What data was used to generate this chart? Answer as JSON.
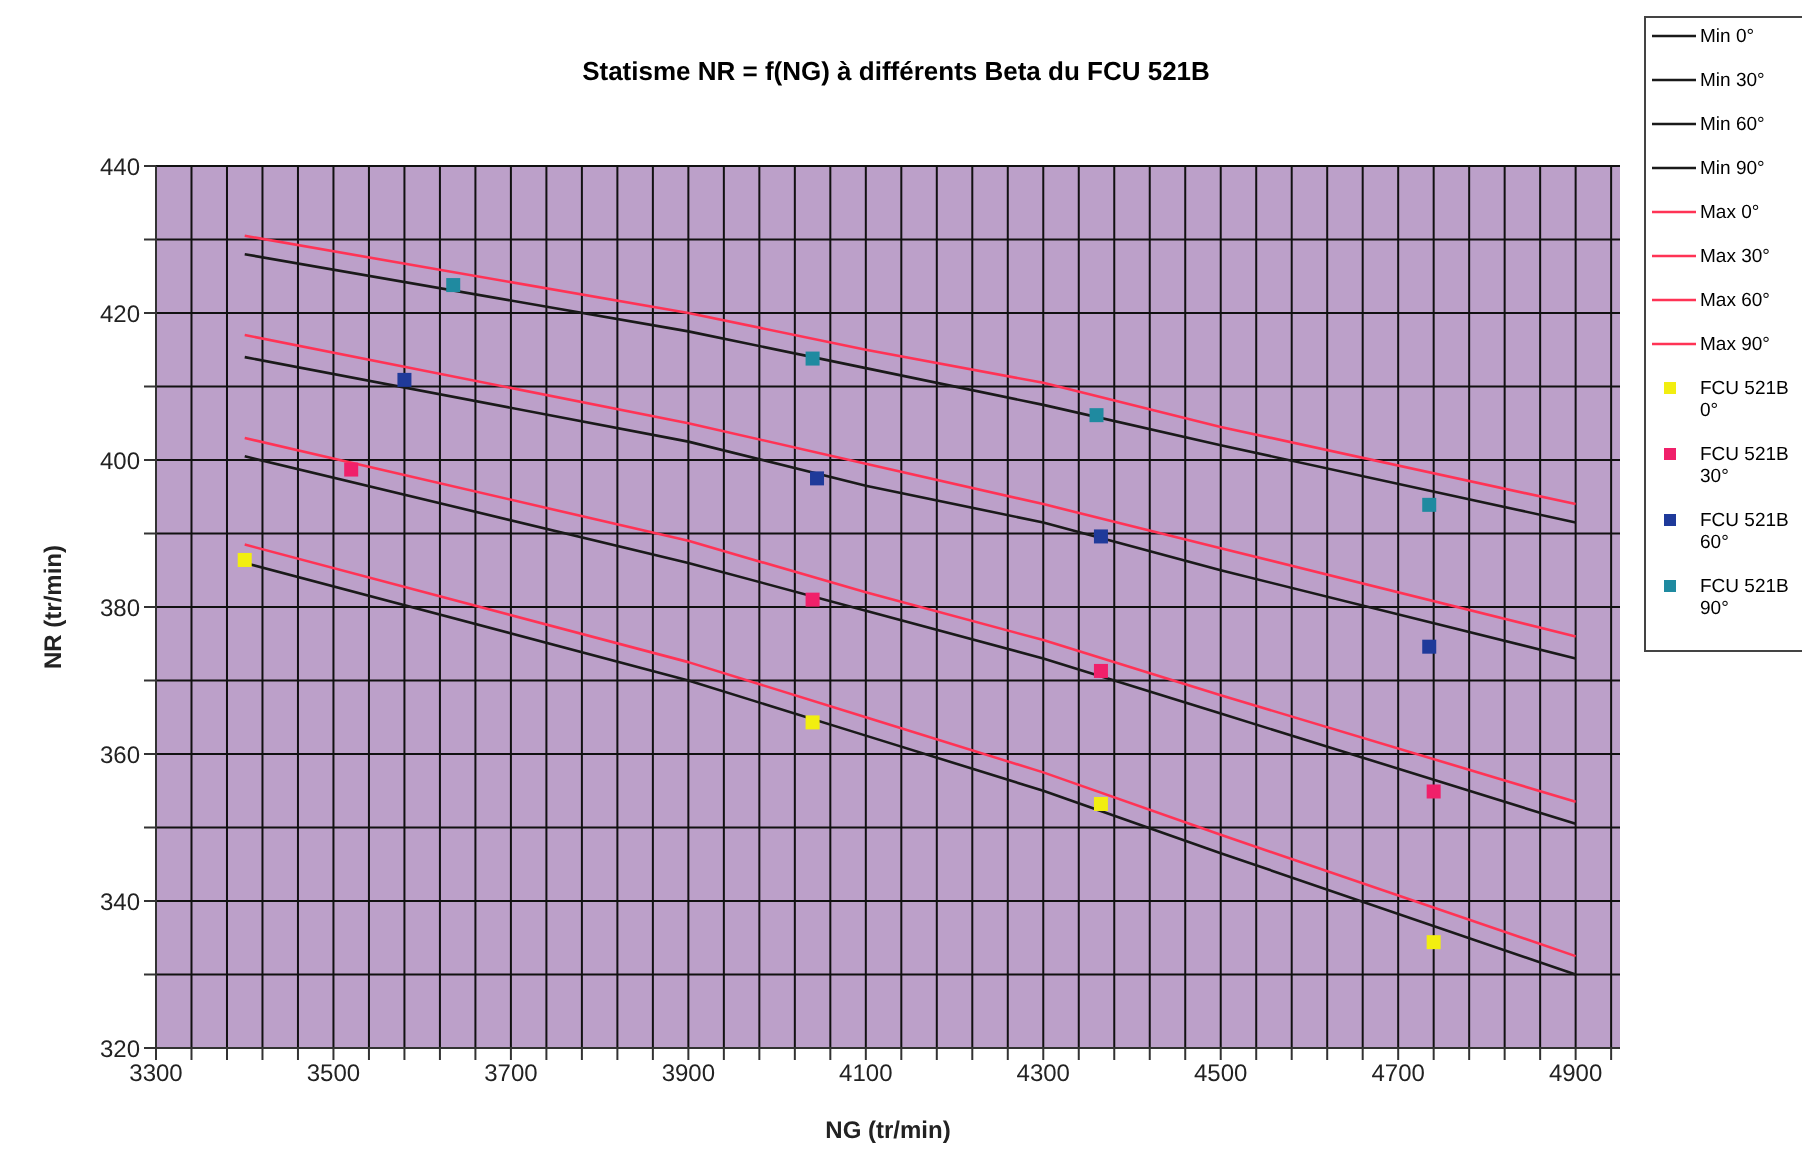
{
  "chart_data": {
    "type": "line",
    "title": "Statisme NR = f(NG) à différents Beta du FCU 521B",
    "xlabel": "NG (tr/min)",
    "ylabel": "NR (tr/min)",
    "xlim": [
      3300,
      4950
    ],
    "xticks": [
      3300,
      {
        "value": 3340,
        "label": null
      },
      {
        "value": 3380,
        "label": null
      },
      {
        "value": 3420,
        "label": null
      },
      {
        "value": 3460,
        "label": null
      },
      3500,
      {
        "value": 3540,
        "label": null
      },
      {
        "value": 3580,
        "label": null
      },
      {
        "value": 3620,
        "label": null
      },
      {
        "value": 3660,
        "label": null
      },
      3700,
      {
        "value": 3740,
        "label": null
      },
      {
        "value": 3780,
        "label": null
      },
      {
        "value": 3820,
        "label": null
      },
      {
        "value": 3860,
        "label": null
      },
      3900,
      {
        "value": 3940,
        "label": null
      },
      {
        "value": 3980,
        "label": null
      },
      {
        "value": 4020,
        "label": null
      },
      {
        "value": 4060,
        "label": null
      },
      4100,
      {
        "value": 4140,
        "label": null
      },
      {
        "value": 4180,
        "label": null
      },
      {
        "value": 4220,
        "label": null
      },
      {
        "value": 4260,
        "label": null
      },
      4300,
      {
        "value": 4340,
        "label": null
      },
      {
        "value": 4380,
        "label": null
      },
      {
        "value": 4420,
        "label": null
      },
      {
        "value": 4460,
        "label": null
      },
      4500,
      {
        "value": 4540,
        "label": null
      },
      {
        "value": 4580,
        "label": null
      },
      {
        "value": 4620,
        "label": null
      },
      {
        "value": 4660,
        "label": null
      },
      4700,
      {
        "value": 4740,
        "label": null
      },
      {
        "value": 4780,
        "label": null
      },
      {
        "value": 4820,
        "label": null
      },
      {
        "value": 4860,
        "label": null
      },
      4900,
      {
        "value": 4940,
        "label": null
      }
    ],
    "ylim": [
      320,
      440
    ],
    "yticks": [
      320,
      {
        "value": 330,
        "label": null
      },
      340,
      {
        "value": 350,
        "label": null
      },
      360,
      {
        "value": 370,
        "label": null
      },
      380,
      {
        "value": 390,
        "label": null
      },
      400,
      {
        "value": 410,
        "label": null
      },
      420,
      {
        "value": 430,
        "label": null
      },
      440
    ],
    "grid": true,
    "legend": "right",
    "line_style": "solid",
    "series": [
      {
        "name": "Min 0°",
        "type": "line",
        "marker": "none",
        "color": "#1a1a1a",
        "x": [
          3400,
          3900,
          4100,
          4300,
          4500,
          4900
        ],
        "values": [
          386,
          370,
          362.5,
          355,
          346.5,
          330
        ]
      },
      {
        "name": "Min 30°",
        "type": "line",
        "marker": "none",
        "color": "#1a1a1a",
        "x": [
          3400,
          3900,
          4100,
          4300,
          4500,
          4900
        ],
        "values": [
          400.5,
          386,
          379.5,
          373,
          365.5,
          350.5
        ]
      },
      {
        "name": "Min 60°",
        "type": "line",
        "marker": "none",
        "color": "#1a1a1a",
        "x": [
          3400,
          3900,
          4100,
          4300,
          4500,
          4900
        ],
        "values": [
          414,
          402.5,
          396.5,
          391.5,
          385,
          373
        ]
      },
      {
        "name": "Min 90°",
        "type": "line",
        "marker": "none",
        "color": "#1a1a1a",
        "x": [
          3400,
          3900,
          4100,
          4300,
          4500,
          4900
        ],
        "values": [
          428,
          417.5,
          412.5,
          407.5,
          402,
          391.5
        ]
      },
      {
        "name": "Max 0°",
        "type": "line",
        "marker": "none",
        "color": "#ff3355",
        "x": [
          3400,
          3900,
          4100,
          4300,
          4500,
          4900
        ],
        "values": [
          388.5,
          372.5,
          365,
          357.5,
          349,
          332.5
        ]
      },
      {
        "name": "Max 30°",
        "type": "line",
        "marker": "none",
        "color": "#ff3355",
        "x": [
          3400,
          3900,
          4100,
          4300,
          4500,
          4900
        ],
        "values": [
          403,
          389,
          382,
          375.5,
          368,
          353.5
        ]
      },
      {
        "name": "Max 60°",
        "type": "line",
        "marker": "none",
        "color": "#ff3355",
        "x": [
          3400,
          3900,
          4100,
          4300,
          4500,
          4900
        ],
        "values": [
          417,
          405,
          399.5,
          394,
          388,
          376
        ]
      },
      {
        "name": "Max 90°",
        "type": "line",
        "marker": "none",
        "color": "#ff3355",
        "x": [
          3400,
          3900,
          4100,
          4300,
          4500,
          4900
        ],
        "values": [
          430.5,
          420,
          415,
          410.5,
          404.5,
          394
        ]
      },
      {
        "name": "FCU 521B 0°",
        "type": "scatter",
        "marker": "square",
        "color": "#f2ee10",
        "x": [
          3400,
          4040,
          4365,
          4740
        ],
        "values": [
          386.4,
          364.3,
          353.2,
          334.4
        ]
      },
      {
        "name": "FCU 521B 30°",
        "type": "scatter",
        "marker": "square",
        "color": "#f0206a",
        "x": [
          3520,
          4040,
          4365,
          4740
        ],
        "values": [
          398.7,
          381,
          371.3,
          354.9
        ]
      },
      {
        "name": "FCU 521B 60°",
        "type": "scatter",
        "marker": "square",
        "color": "#1f3a9a",
        "x": [
          3580,
          4045,
          4365,
          4735
        ],
        "values": [
          410.9,
          397.5,
          389.6,
          374.6
        ]
      },
      {
        "name": "FCU 521B 90°",
        "type": "scatter",
        "marker": "square",
        "color": "#1f8aa0",
        "x": [
          3635,
          4040,
          4360,
          4735
        ],
        "values": [
          423.8,
          413.8,
          406.1,
          393.9
        ]
      }
    ]
  }
}
